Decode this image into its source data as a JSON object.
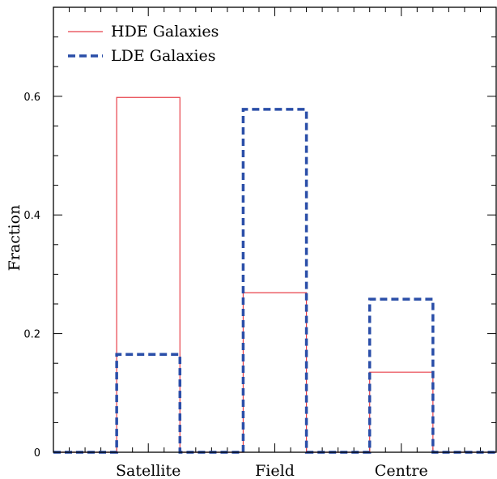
{
  "chart_data": {
    "type": "bar",
    "style": "step-histogram outline",
    "categories": [
      "Satellite",
      "Field",
      "Centre"
    ],
    "series": [
      {
        "name": "HDE Galaxies",
        "values": [
          0.598,
          0.269,
          0.135
        ],
        "color": "#e8404a",
        "line": "solid"
      },
      {
        "name": "LDE Galaxies",
        "values": [
          0.165,
          0.578,
          0.258
        ],
        "color": "#2a4ea8",
        "line": "dashed"
      }
    ],
    "xlabel": "",
    "ylabel": "Fraction",
    "ylim": [
      0,
      0.75
    ],
    "yticks": [
      "0",
      "0.2",
      "0.4",
      "0.6"
    ],
    "legend_position": "top-left",
    "grid": false
  }
}
